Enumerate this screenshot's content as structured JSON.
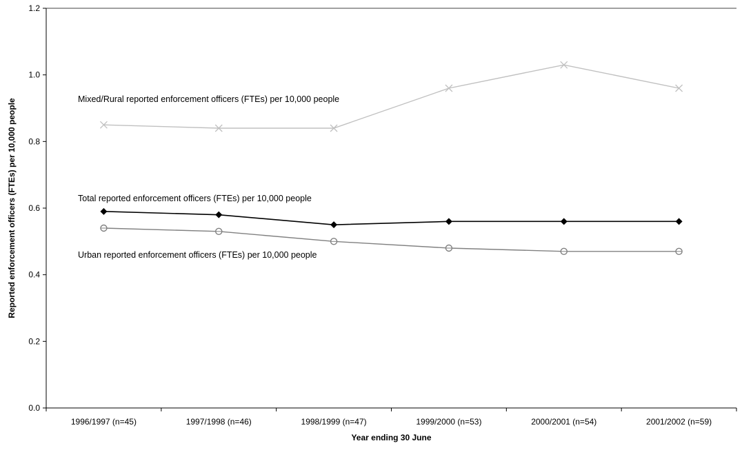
{
  "chart_data": {
    "type": "line",
    "title": "",
    "xlabel": "Year ending 30 June",
    "ylabel": "Reported enforcement officers (FTEs) per 10,000 people",
    "ylim": [
      0,
      1.2
    ],
    "yticks": [
      "0.0",
      "0.2",
      "0.4",
      "0.6",
      "0.8",
      "1.0",
      "1.2"
    ],
    "grid": false,
    "categories": [
      "1996/1997 (n=45)",
      "1997/1998 (n=46)",
      "1998/1999 (n=47)",
      "1999/2000 (n=53)",
      "2000/2001 (n=54)",
      "2001/2002 (n=59)"
    ],
    "series": [
      {
        "name": "Mixed/Rural reported enforcement officers (FTEs) per 10,000 people",
        "marker": "x",
        "color": "#c0c0c0",
        "values": [
          0.85,
          0.84,
          0.84,
          0.96,
          1.03,
          0.96
        ]
      },
      {
        "name": "Total reported enforcement officers (FTEs) per 10,000 people",
        "marker": "diamond",
        "color": "#000000",
        "values": [
          0.59,
          0.58,
          0.55,
          0.56,
          0.56,
          0.56
        ]
      },
      {
        "name": "Urban reported enforcement officers (FTEs) per 10,000 people",
        "marker": "circle",
        "color": "#808080",
        "values": [
          0.54,
          0.53,
          0.5,
          0.48,
          0.47,
          0.47
        ]
      }
    ]
  }
}
